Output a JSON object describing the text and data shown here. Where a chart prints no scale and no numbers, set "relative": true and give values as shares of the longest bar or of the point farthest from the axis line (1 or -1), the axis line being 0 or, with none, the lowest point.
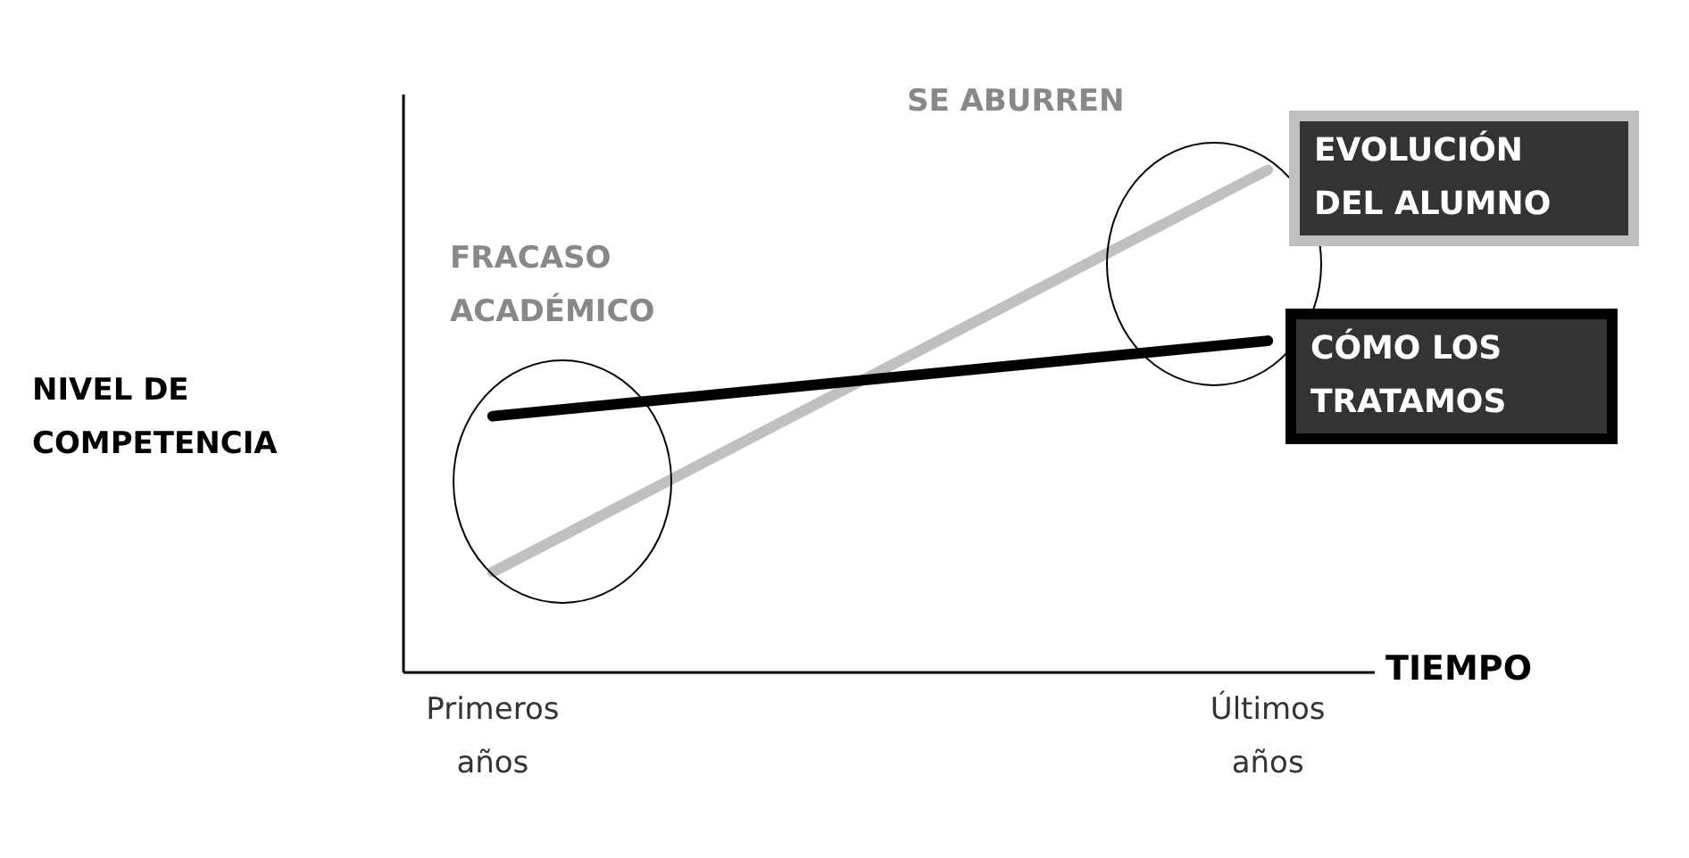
{
  "chart_data": {
    "type": "line",
    "relative": true,
    "xlabel": "TIEMPO",
    "ylabel": "NIVEL DE COMPETENCIA",
    "categories": [
      "Primeros años",
      "Últimos años"
    ],
    "series": [
      {
        "name": "EVOLUCIÓN DEL ALUMNO",
        "color": "#c0c0c0",
        "values": [
          0.2,
          1
        ]
      },
      {
        "name": "CÓMO LOS TRATAMOS",
        "color": "#000000",
        "values": [
          0.51,
          0.66
        ]
      }
    ],
    "annotations": [
      "FRACASO ACADÉMICO",
      "SE ABURREN"
    ],
    "marker": "none"
  }
}
